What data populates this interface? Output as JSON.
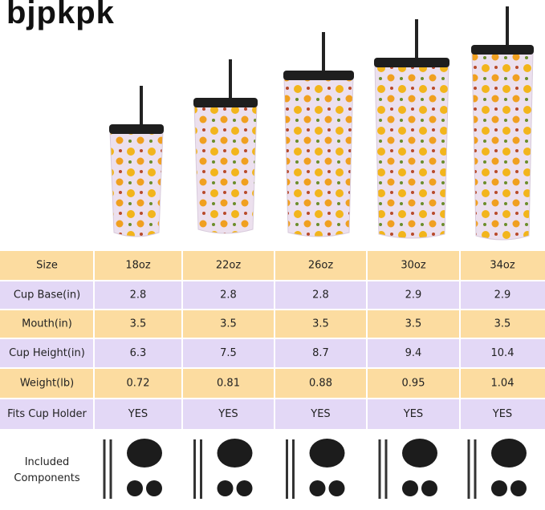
{
  "brand": "bjpkpk",
  "table": {
    "rows": [
      [
        "Size",
        "18oz",
        "22oz",
        "26oz",
        "30oz",
        "34oz"
      ],
      [
        "Cup Base(in)",
        "2.8",
        "2.8",
        "2.8",
        "2.9",
        "2.9"
      ],
      [
        "Mouth(in)",
        "3.5",
        "3.5",
        "3.5",
        "3.5",
        "3.5"
      ],
      [
        "Cup Height(in)",
        "6.3",
        "7.5",
        "8.7",
        "9.4",
        "10.4"
      ],
      [
        "Weight(lb)",
        "0.72",
        "0.81",
        "0.88",
        "0.95",
        "1.04"
      ],
      [
        "Fits Cup Holder",
        "YES",
        "YES",
        "YES",
        "YES",
        "YES"
      ],
      [
        "Included Components"
      ]
    ]
  }
}
